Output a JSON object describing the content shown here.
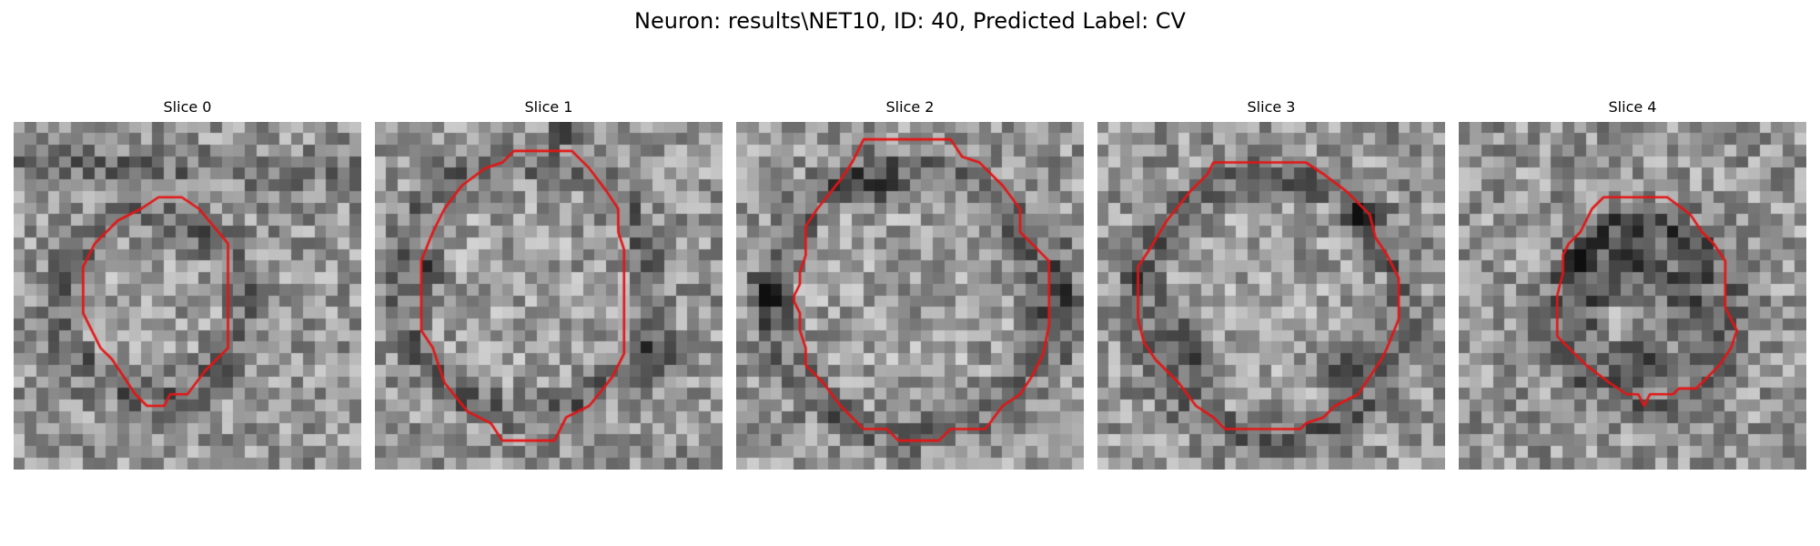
{
  "figure": {
    "title": "Neuron: results\\NET10, ID: 40, Predicted Label: CV",
    "contour_color": "#e41414",
    "colormap": "gray"
  },
  "panels": [
    {
      "title": "Slice 0",
      "contour": [
        [
          12.5,
          6.5
        ],
        [
          14.5,
          6.5
        ],
        [
          16,
          7.5
        ],
        [
          18.5,
          10.5
        ],
        [
          18.5,
          19.5
        ],
        [
          16.5,
          21.5
        ],
        [
          15,
          23.5
        ],
        [
          13.5,
          23.5
        ],
        [
          13,
          24.5
        ],
        [
          11.5,
          24.5
        ],
        [
          10.5,
          23.5
        ],
        [
          8.5,
          20.5
        ],
        [
          7.5,
          19.5
        ],
        [
          6,
          16.5
        ],
        [
          6,
          12.5
        ],
        [
          7,
          10.5
        ],
        [
          9,
          8.5
        ],
        [
          11,
          7.5
        ]
      ],
      "dark_features": []
    },
    {
      "title": "Slice 1",
      "contour": [
        [
          12,
          2.5
        ],
        [
          17,
          2.5
        ],
        [
          18.5,
          4
        ],
        [
          20,
          6
        ],
        [
          21,
          7.5
        ],
        [
          21,
          9.5
        ],
        [
          21.5,
          11
        ],
        [
          21.5,
          20
        ],
        [
          20.5,
          22
        ],
        [
          18.5,
          24.5
        ],
        [
          16.5,
          25.5
        ],
        [
          15.5,
          27.5
        ],
        [
          11,
          27.5
        ],
        [
          10,
          26
        ],
        [
          8,
          25
        ],
        [
          6,
          22.5
        ],
        [
          5,
          19.5
        ],
        [
          4,
          18
        ],
        [
          4,
          12
        ],
        [
          5,
          9.5
        ],
        [
          6,
          7.5
        ],
        [
          7.5,
          5.5
        ],
        [
          9.5,
          4
        ],
        [
          11,
          3.5
        ]
      ],
      "dark_features": [
        {
          "cx": 4.5,
          "cy": 13,
          "rx": 1.2,
          "ry": 2.5
        },
        {
          "cx": 24.5,
          "cy": 20,
          "rx": 2,
          "ry": 2.5
        },
        {
          "cx": 17,
          "cy": 1,
          "rx": 2,
          "ry": 1
        }
      ]
    },
    {
      "title": "Slice 2",
      "contour": [
        [
          11,
          1.5
        ],
        [
          18.5,
          1.5
        ],
        [
          19.5,
          3
        ],
        [
          21,
          3.5
        ],
        [
          23,
          5.5
        ],
        [
          24.5,
          7.5
        ],
        [
          24.5,
          9.5
        ],
        [
          25.5,
          10.5
        ],
        [
          27,
          12
        ],
        [
          27,
          17.5
        ],
        [
          26.5,
          20
        ],
        [
          25.5,
          22
        ],
        [
          24.5,
          23.5
        ],
        [
          23,
          24.5
        ],
        [
          21.5,
          26.5
        ],
        [
          18.5,
          26.5
        ],
        [
          17.5,
          27.5
        ],
        [
          14,
          27.5
        ],
        [
          13,
          26.5
        ],
        [
          11,
          26.5
        ],
        [
          9,
          24.5
        ],
        [
          7.5,
          22.5
        ],
        [
          6,
          21
        ],
        [
          6,
          19.5
        ],
        [
          5.5,
          18
        ],
        [
          5.5,
          16.5
        ],
        [
          5,
          15.5
        ],
        [
          5,
          15
        ],
        [
          5.5,
          14
        ],
        [
          5.5,
          13
        ],
        [
          6,
          11.5
        ],
        [
          6,
          9
        ],
        [
          7,
          7.5
        ],
        [
          9,
          5
        ],
        [
          10,
          3.5
        ]
      ],
      "dark_features": [
        {
          "cx": 12.5,
          "cy": 6,
          "rx": 3.5,
          "ry": 1.5
        },
        {
          "cx": 3,
          "cy": 15,
          "rx": 1.5,
          "ry": 2.5
        },
        {
          "cx": 28,
          "cy": 16,
          "rx": 1.5,
          "ry": 5
        }
      ]
    },
    {
      "title": "Slice 3",
      "contour": [
        [
          10,
          3.5
        ],
        [
          18,
          3.5
        ],
        [
          19.5,
          4.5
        ],
        [
          21.5,
          6
        ],
        [
          23.5,
          8
        ],
        [
          24,
          10
        ],
        [
          25,
          11.5
        ],
        [
          26,
          13.5
        ],
        [
          26,
          17
        ],
        [
          25,
          19.5
        ],
        [
          24.5,
          20.5
        ],
        [
          23.5,
          22
        ],
        [
          22.5,
          23.5
        ],
        [
          20.5,
          24.5
        ],
        [
          19.5,
          25.5
        ],
        [
          18,
          26
        ],
        [
          17.5,
          26.5
        ],
        [
          11,
          26.5
        ],
        [
          10,
          25.5
        ],
        [
          8.5,
          24.5
        ],
        [
          7,
          22.5
        ],
        [
          5,
          20.5
        ],
        [
          4,
          19
        ],
        [
          3.5,
          17
        ],
        [
          3.5,
          12.5
        ],
        [
          4.5,
          11
        ],
        [
          6,
          8.5
        ],
        [
          8,
          6
        ],
        [
          9.5,
          4.5
        ]
      ],
      "dark_features": [
        {
          "cx": 8,
          "cy": 20,
          "rx": 2,
          "ry": 3
        },
        {
          "cx": 21,
          "cy": 21.5,
          "rx": 2.5,
          "ry": 2
        },
        {
          "cx": 22.5,
          "cy": 8,
          "rx": 1.5,
          "ry": 2
        },
        {
          "cx": 3.5,
          "cy": 13,
          "rx": 1,
          "ry": 2
        }
      ]
    },
    {
      "title": "Slice 4",
      "contour": [
        [
          12.5,
          6.5
        ],
        [
          18,
          6.5
        ],
        [
          20,
          8
        ],
        [
          21,
          9.5
        ],
        [
          22,
          10.5
        ],
        [
          23,
          12
        ],
        [
          23,
          16
        ],
        [
          24,
          18
        ],
        [
          23.5,
          19.5
        ],
        [
          22.5,
          21
        ],
        [
          21,
          22.5
        ],
        [
          20.5,
          23
        ],
        [
          19,
          23
        ],
        [
          18.5,
          23.5
        ],
        [
          16.5,
          23.5
        ],
        [
          16,
          24.5
        ],
        [
          15.5,
          23.5
        ],
        [
          14.5,
          23.5
        ],
        [
          13,
          22.5
        ],
        [
          11,
          21
        ],
        [
          10,
          20
        ],
        [
          8.5,
          18.5
        ],
        [
          8.5,
          15
        ],
        [
          9,
          13
        ],
        [
          9,
          11.5
        ],
        [
          9.5,
          10.5
        ],
        [
          10.5,
          9.5
        ],
        [
          11.5,
          7.5
        ]
      ],
      "dark_features": [
        {
          "cx": 15.5,
          "cy": 12,
          "rx": 5.5,
          "ry": 3.5
        },
        {
          "cx": 11,
          "cy": 15.5,
          "rx": 2,
          "ry": 4
        },
        {
          "cx": 20.5,
          "cy": 16,
          "rx": 2,
          "ry": 4
        },
        {
          "cx": 15.5,
          "cy": 21,
          "rx": 4.5,
          "ry": 2
        }
      ]
    }
  ]
}
